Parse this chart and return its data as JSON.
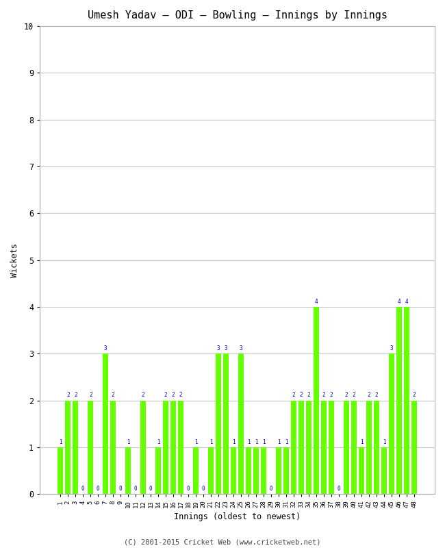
{
  "title": "Umesh Yadav – ODI – Bowling – Innings by Innings",
  "xlabel": "Innings (oldest to newest)",
  "ylabel": "Wickets",
  "ylim": [
    0,
    10
  ],
  "yticks": [
    0,
    1,
    2,
    3,
    4,
    5,
    6,
    7,
    8,
    9,
    10
  ],
  "bar_color": "#66ff00",
  "label_color": "#0000cc",
  "background_color": "#ffffff",
  "grid_color": "#c8c8c8",
  "footer": "(C) 2001-2015 Cricket Web (www.cricketweb.net)",
  "innings": [
    1,
    2,
    3,
    4,
    5,
    6,
    7,
    8,
    9,
    10,
    11,
    12,
    13,
    14,
    15,
    16,
    17,
    18,
    19,
    20,
    21,
    22,
    23,
    24,
    25,
    26,
    27,
    28,
    29,
    30,
    31,
    32,
    33,
    34,
    35,
    36,
    37,
    38,
    39,
    40,
    41,
    42,
    43,
    44,
    45,
    46,
    47,
    48
  ],
  "wickets": [
    1,
    2,
    2,
    0,
    2,
    0,
    3,
    2,
    0,
    1,
    0,
    2,
    0,
    1,
    2,
    2,
    2,
    0,
    1,
    0,
    1,
    3,
    3,
    1,
    3,
    1,
    1,
    1,
    0,
    1,
    1,
    2,
    2,
    2,
    4,
    2,
    2,
    0,
    2,
    2,
    1,
    2,
    2,
    1,
    3,
    4,
    4,
    2
  ]
}
